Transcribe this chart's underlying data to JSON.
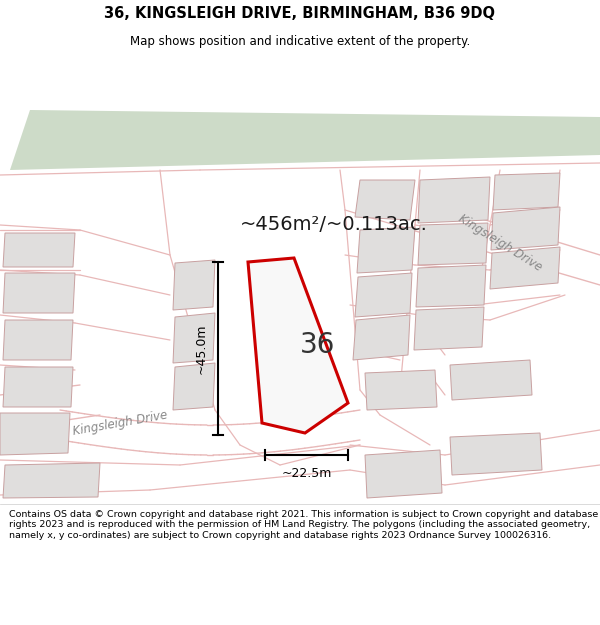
{
  "title": "36, KINGSLEIGH DRIVE, BIRMINGHAM, B36 9DQ",
  "subtitle": "Map shows position and indicative extent of the property.",
  "area_label": "~456m²/~0.113ac.",
  "number_label": "36",
  "dim_width": "~22.5m",
  "dim_height": "~45.0m",
  "street_label_bottom": "Kingsleigh Drive",
  "street_label_right": "Kingsleigh Drive",
  "footer": "Contains OS data © Crown copyright and database right 2021. This information is subject to Crown copyright and database rights 2023 and is reproduced with the permission of HM Land Registry. The polygons (including the associated geometry, namely x, y co-ordinates) are subject to Crown copyright and database rights 2023 Ordnance Survey 100026316.",
  "bg_color": "#f0eeeb",
  "road_color": "#e8b8b8",
  "building_fill": "#e0dedd",
  "building_edge": "#c8a0a0",
  "green_fill": "#cddbc8",
  "property_fill": "#f8f8f8",
  "property_edge": "#cc0000",
  "title_color": "#000000",
  "footer_color": "#000000"
}
